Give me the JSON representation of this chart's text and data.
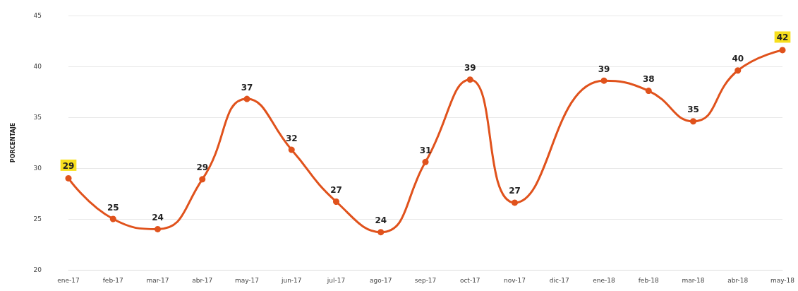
{
  "chart_data": {
    "type": "line",
    "ylabel": "PORCENTAJE",
    "categories": [
      "ene-17",
      "feb-17",
      "mar-17",
      "abr-17",
      "may-17",
      "jun-17",
      "jul-17",
      "ago-17",
      "sep-17",
      "oct-17",
      "nov-17",
      "dic-17",
      "ene-18",
      "feb-18",
      "mar-18",
      "abr-18",
      "may-18"
    ],
    "series": [
      {
        "color": "#e0521c",
        "values": [
          29.0,
          25.0,
          24.0,
          28.9,
          36.8,
          31.8,
          26.7,
          23.7,
          30.6,
          38.7,
          26.6,
          null,
          38.6,
          37.6,
          34.6,
          39.6,
          41.6
        ],
        "value_labels": [
          "29",
          "25",
          "24",
          "29",
          "37",
          "32",
          "27",
          "24",
          "31",
          "39",
          "27",
          null,
          "39",
          "38",
          "35",
          "40",
          "42"
        ]
      }
    ],
    "ylim": [
      20,
      45
    ],
    "yticks": [
      20,
      25,
      30,
      35,
      40,
      45
    ],
    "grid": "y",
    "marker": "circle",
    "line_style": "solid"
  }
}
